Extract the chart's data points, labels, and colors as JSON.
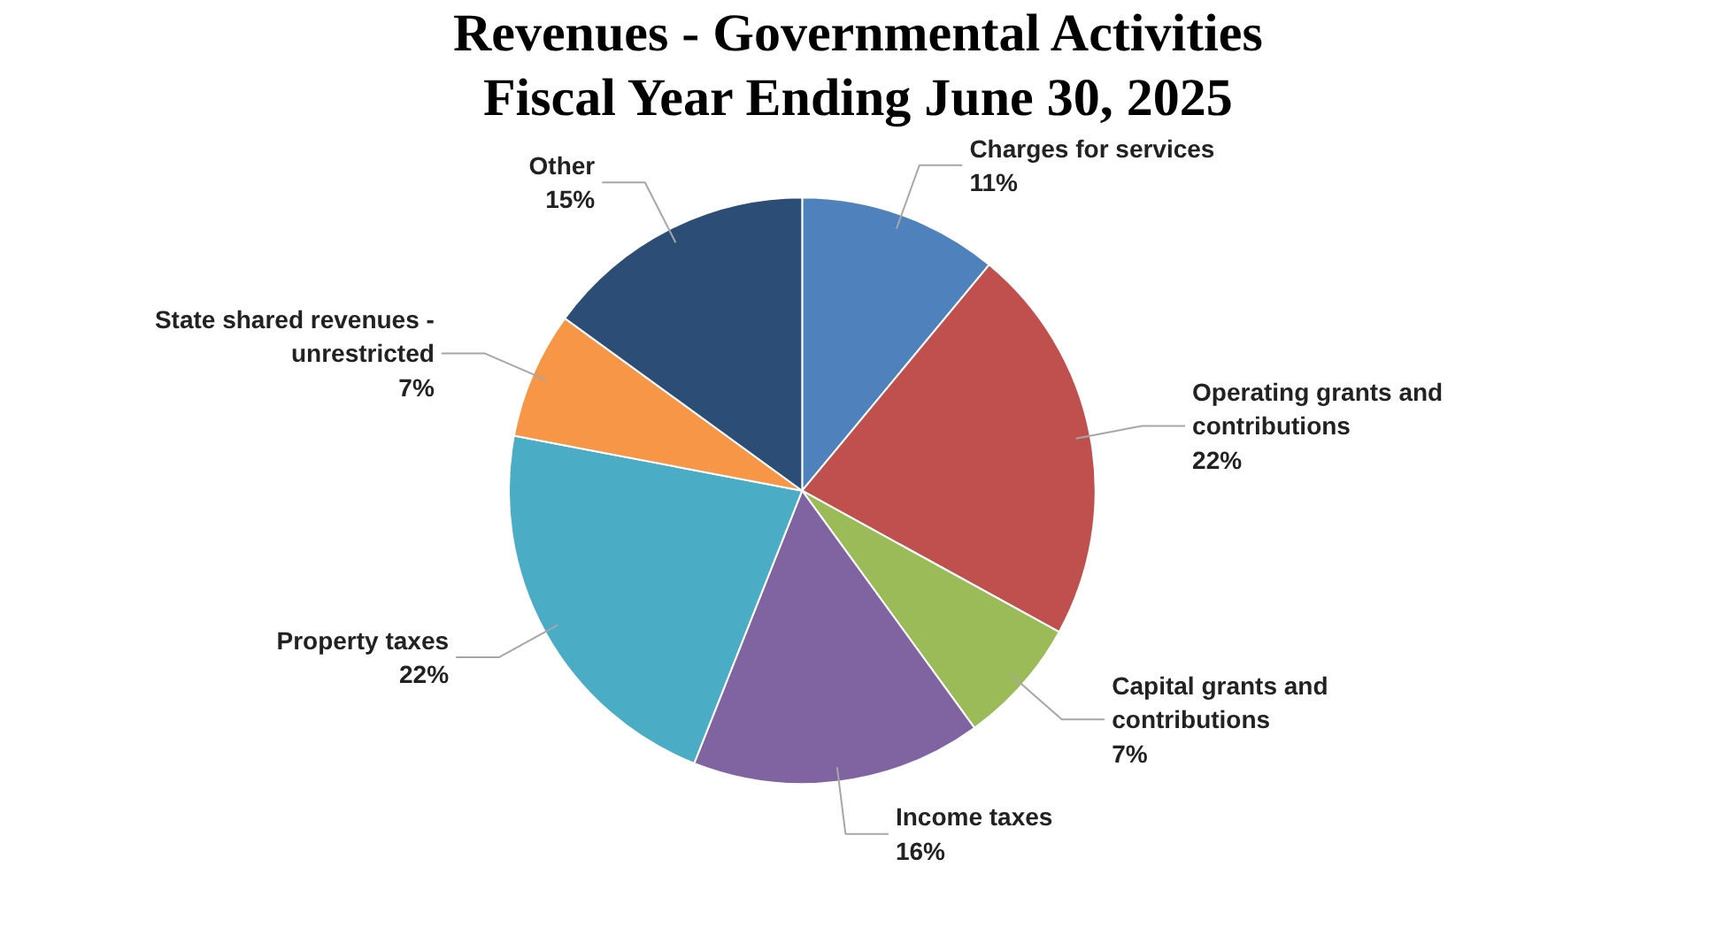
{
  "chart_data": {
    "type": "pie",
    "title": "Revenues - Governmental Activities Fiscal Year Ending June 30, 2025",
    "categories": [
      "Charges for services",
      "Operating grants and contributions",
      "Capital grants and contributions",
      "Income taxes",
      "Property taxes",
      "State shared revenues - unrestricted",
      "Other"
    ],
    "values": [
      11,
      22,
      7,
      16,
      22,
      7,
      15
    ],
    "value_labels": [
      "11%",
      "22%",
      "7%",
      "16%",
      "22%",
      "7%",
      "15%"
    ],
    "colors": [
      "#4f81bd",
      "#c0504d",
      "#9bbb59",
      "#8064a2",
      "#4bacc6",
      "#f79646",
      "#2c4d75"
    ]
  }
}
